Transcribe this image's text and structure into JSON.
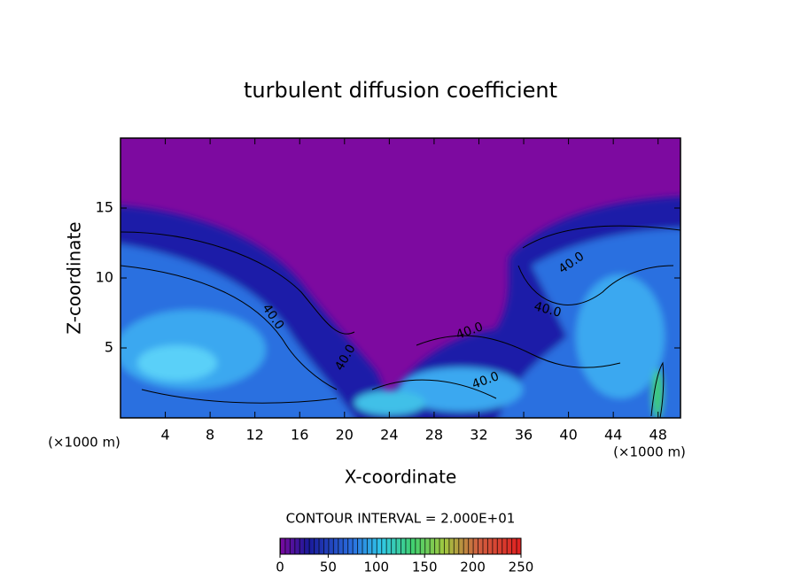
{
  "chart_data": {
    "type": "contour",
    "title": "turbulent diffusion coefficient",
    "x_label": "X-coordinate",
    "y_label": "Z-coordinate",
    "x_unit_label": "(×1000 m)",
    "xlim": [
      0,
      50
    ],
    "ylim": [
      0,
      20
    ],
    "xticks": [
      4,
      8,
      12,
      16,
      20,
      24,
      28,
      32,
      36,
      40,
      44,
      48
    ],
    "yticks": [
      5,
      10,
      15
    ],
    "contour_interval_label": "CONTOUR INTERVAL = 2.000E+01",
    "colorbar": {
      "lim": [
        0,
        250
      ],
      "ticks": [
        0,
        50,
        100,
        150,
        200,
        250
      ]
    },
    "contour_labels": [
      "40.0",
      "40.0",
      "40.0",
      "40.0",
      "40.0",
      "40.0"
    ]
  }
}
